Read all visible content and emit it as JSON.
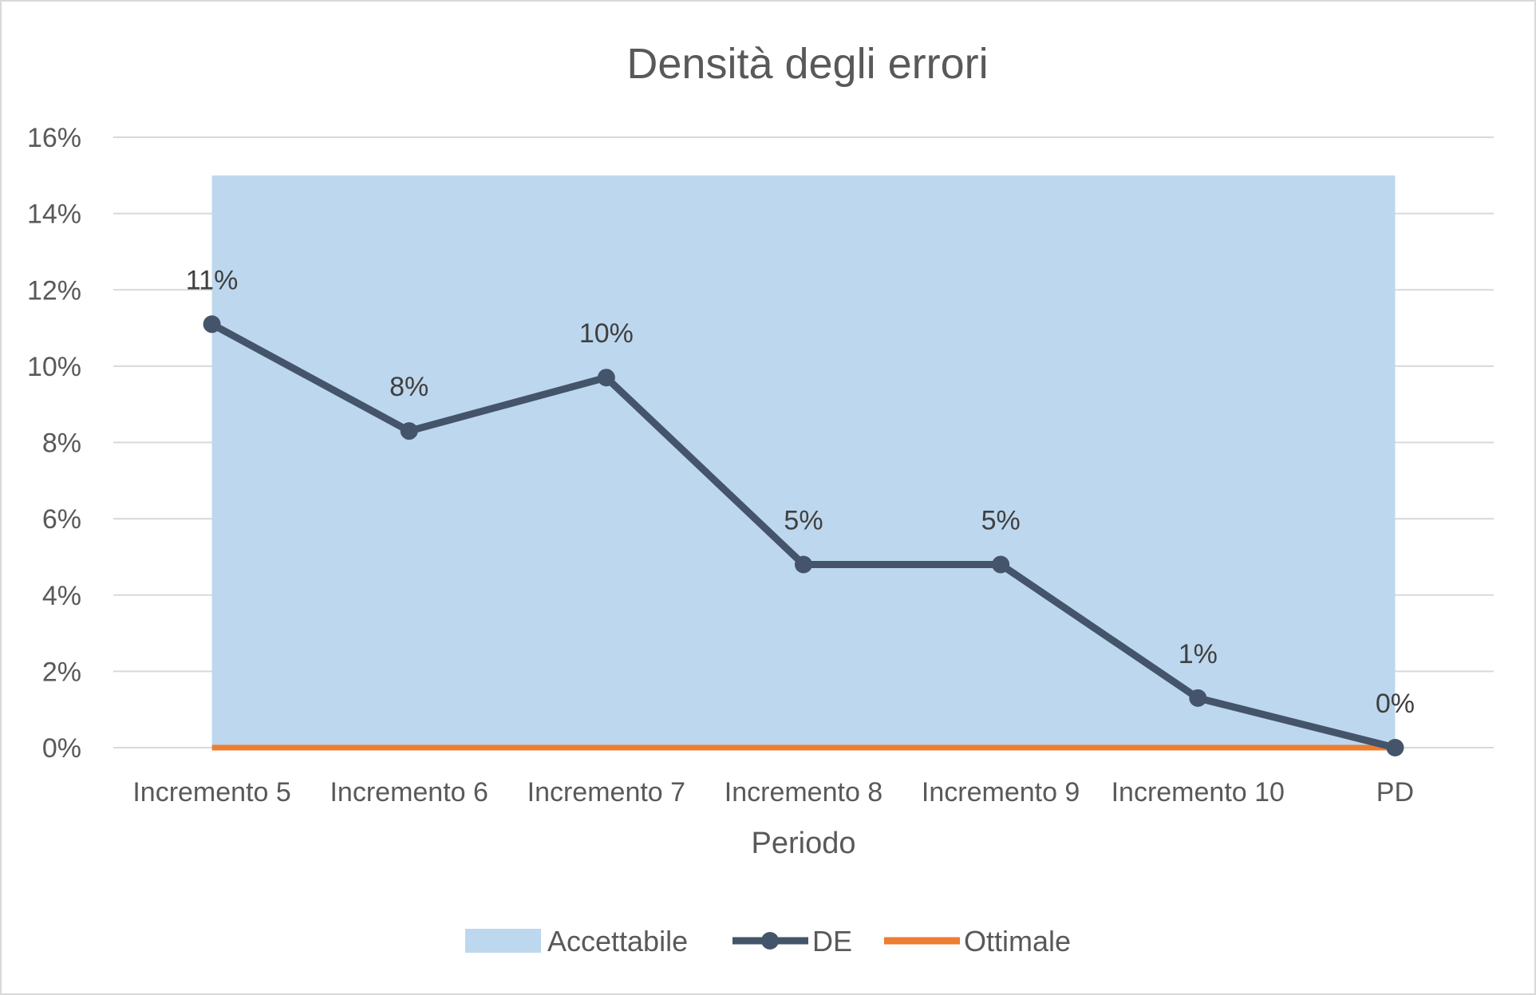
{
  "chart_data": {
    "type": "line",
    "title": "Densità degli errori",
    "xlabel": "Periodo",
    "ylabel": "",
    "categories": [
      "Incremento 5",
      "Incremento 6",
      "Incremento 7",
      "Incremento 8",
      "Incremento 9",
      "Incremento 10",
      "PD"
    ],
    "y_ticks": [
      "0%",
      "2%",
      "4%",
      "6%",
      "8%",
      "10%",
      "12%",
      "14%",
      "16%"
    ],
    "ylim": [
      0,
      0.16
    ],
    "grid": true,
    "legend_position": "bottom",
    "series": [
      {
        "name": "Accettabile",
        "kind": "area",
        "color": "#bdd7ee",
        "values": [
          0.15,
          0.15,
          0.15,
          0.15,
          0.15,
          0.15,
          0.15
        ]
      },
      {
        "name": "DE",
        "kind": "line-markers",
        "color": "#44546a",
        "values": [
          0.111,
          0.083,
          0.097,
          0.048,
          0.048,
          0.013,
          0.0
        ],
        "labels": [
          "11%",
          "8%",
          "10%",
          "5%",
          "5%",
          "1%",
          "0%"
        ]
      },
      {
        "name": "Ottimale",
        "kind": "line",
        "color": "#ed7d31",
        "values": [
          0,
          0,
          0,
          0,
          0,
          0,
          0
        ]
      }
    ]
  }
}
